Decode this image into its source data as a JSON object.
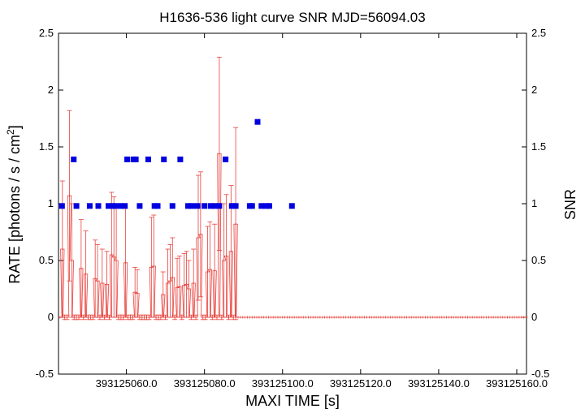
{
  "chart_data": {
    "type": "scatter",
    "title": "H1636-536 light curve  SNR MJD=56094.03",
    "xlabel": "MAXI TIME [s]",
    "ylabel_left": "RATE [photons / s / cm",
    "ylabel_left_sup": "2",
    "ylabel_left_close": "]",
    "ylabel_right": "SNR",
    "xlim": [
      393125042.6,
      393125162.5
    ],
    "ylim": [
      -0.5,
      2.5
    ],
    "x_ticks": [
      393125060.0,
      393125080.0,
      393125100.0,
      393125120.0,
      393125140.0,
      393125160.0
    ],
    "x_tick_labels": [
      "393125060.0",
      "393125080.0",
      "393125100.0",
      "393125120.0",
      "393125140.0",
      "393125160.0"
    ],
    "y_ticks": [
      -0.5,
      0,
      0.5,
      1,
      1.5,
      2,
      2.5
    ],
    "y_tick_labels": [
      "-0.5",
      "0",
      "0.5",
      "1",
      "1.5",
      "2",
      "2.5"
    ],
    "grid": false,
    "colors": {
      "rate": "#e8413c",
      "snr": "#0000e0"
    },
    "rate_series": {
      "x": [
        393125043.0,
        393125043.6,
        393125044.2,
        393125044.8,
        393125045.4,
        393125046.0,
        393125046.6,
        393125047.2,
        393125047.8,
        393125048.4,
        393125049.0,
        393125049.6,
        393125050.2,
        393125050.8,
        393125051.4,
        393125052.0,
        393125052.6,
        393125053.2,
        393125053.8,
        393125054.4,
        393125055.0,
        393125055.6,
        393125056.2,
        393125056.8,
        393125057.4,
        393125058.0,
        393125058.6,
        393125059.2,
        393125059.8,
        393125060.4,
        393125061.0,
        393125061.6,
        393125062.2,
        393125062.8,
        393125063.4,
        393125064.0,
        393125064.6,
        393125065.2,
        393125065.8,
        393125066.4,
        393125067.0,
        393125067.6,
        393125068.2,
        393125068.8,
        393125069.4,
        393125070.0,
        393125070.6,
        393125071.2,
        393125071.8,
        393125072.4,
        393125073.0,
        393125073.6,
        393125074.2,
        393125074.8,
        393125075.4,
        393125076.0,
        393125076.6,
        393125077.2,
        393125077.8,
        393125078.4,
        393125079.0,
        393125079.6,
        393125080.2,
        393125080.8,
        393125081.4,
        393125082.0,
        393125082.6,
        393125083.2,
        393125083.8,
        393125084.4,
        393125085.0,
        393125085.6,
        393125086.2,
        393125086.8,
        393125087.4,
        393125088.0,
        393125088.6,
        393125089.2,
        393125089.8,
        393125090.4,
        393125091.0,
        393125091.6,
        393125092.2,
        393125092.8,
        393125093.4,
        393125094.0,
        393125094.6,
        393125095.2,
        393125095.8,
        393125096.4,
        393125097.0,
        393125097.6,
        393125098.2,
        393125098.8,
        393125099.4,
        393125100.0,
        393125100.6,
        393125101.2,
        393125101.8,
        393125102.4,
        393125103.0,
        393125103.6,
        393125104.2,
        393125104.8,
        393125105.4,
        393125106.0,
        393125106.6
      ],
      "y": [
        0,
        0.6,
        0,
        0,
        1.07,
        0.5,
        0,
        0,
        0,
        0.43,
        0,
        0.38,
        0,
        0,
        0,
        0.34,
        0.32,
        0,
        0.3,
        0,
        0.29,
        0,
        0.55,
        0.53,
        0.5,
        0,
        0,
        0,
        0.48,
        0,
        0,
        0,
        0.22,
        0.21,
        0,
        0,
        0,
        0,
        0,
        0.44,
        0.45,
        0,
        0,
        0,
        0.2,
        0,
        0.3,
        0.32,
        0.35,
        0,
        0.26,
        0.27,
        0,
        0.28,
        0.29,
        0.25,
        0,
        0.3,
        0,
        0.7,
        0.73,
        0,
        0,
        0.4,
        0.42,
        0,
        0.41,
        0,
        1.44,
        0,
        0.5,
        0.54,
        0,
        0.58,
        0,
        0.82,
        0,
        0,
        0,
        0,
        0,
        0,
        0,
        0,
        0,
        0,
        0,
        0,
        0,
        0,
        0,
        0,
        0,
        0,
        0,
        0,
        0,
        0,
        0,
        0,
        0,
        0,
        0,
        0,
        0,
        0,
        0
      ],
      "err": [
        0,
        0.6,
        0.02,
        0.02,
        0.75,
        0.5,
        0.02,
        0.02,
        0.02,
        0.43,
        0.02,
        0.38,
        0.02,
        0.02,
        0.02,
        0.34,
        0.32,
        0.02,
        0.3,
        0.02,
        0.29,
        0.02,
        0.55,
        0.53,
        0.5,
        0.02,
        0.02,
        0.02,
        0.48,
        0.02,
        0.02,
        0.02,
        0.22,
        0.21,
        0.02,
        0.02,
        0.02,
        0.02,
        0.02,
        0.44,
        0.45,
        0.02,
        0.02,
        0.02,
        0.2,
        0.02,
        0.3,
        0.32,
        0.35,
        0.02,
        0.26,
        0.27,
        0.02,
        0.28,
        0.29,
        0.25,
        0.02,
        0.3,
        0.02,
        0.55,
        0.55,
        0.02,
        0.02,
        0.4,
        0.42,
        0.02,
        0.41,
        0.02,
        0.85,
        0.02,
        0.5,
        0.54,
        0.02,
        0.58,
        0.02,
        0.85,
        0,
        0,
        0,
        0,
        0,
        0,
        0,
        0,
        0,
        0,
        0,
        0,
        0,
        0,
        0,
        0,
        0,
        0,
        0,
        0,
        0,
        0,
        0,
        0,
        0,
        0,
        0,
        0,
        0,
        0,
        0
      ],
      "x_tail_start": 393125107.2,
      "x_tail_end": 393125162.5,
      "x_tail_step": 0.6
    },
    "snr_series": {
      "x": [
        393125043.5,
        393125046.5,
        393125047.2,
        393125050.6,
        393125052.8,
        393125055.4,
        393125056.4,
        393125057.2,
        393125058.6,
        393125059.6,
        393125060.2,
        393125061.8,
        393125062.4,
        393125063.4,
        393125065.6,
        393125067.2,
        393125068.0,
        393125069.6,
        393125071.8,
        393125073.8,
        393125075.8,
        393125076.8,
        393125078.2,
        393125080.0,
        393125081.6,
        393125082.6,
        393125083.8,
        393125085.4,
        393125087.0,
        393125088.0,
        393125091.6,
        393125092.2,
        393125093.6,
        393125094.6,
        393125095.8,
        393125096.6,
        393125102.4
      ],
      "y": [
        0.98,
        1.39,
        0.98,
        0.98,
        0.98,
        0.98,
        0.98,
        0.98,
        0.98,
        0.98,
        1.39,
        1.39,
        1.39,
        0.98,
        1.39,
        0.98,
        0.98,
        1.39,
        0.98,
        1.39,
        0.98,
        0.98,
        0.98,
        0.98,
        0.98,
        0.98,
        0.98,
        1.39,
        0.98,
        0.98,
        0.98,
        0.98,
        1.72,
        0.98,
        0.98,
        0.98,
        0.98
      ]
    }
  }
}
